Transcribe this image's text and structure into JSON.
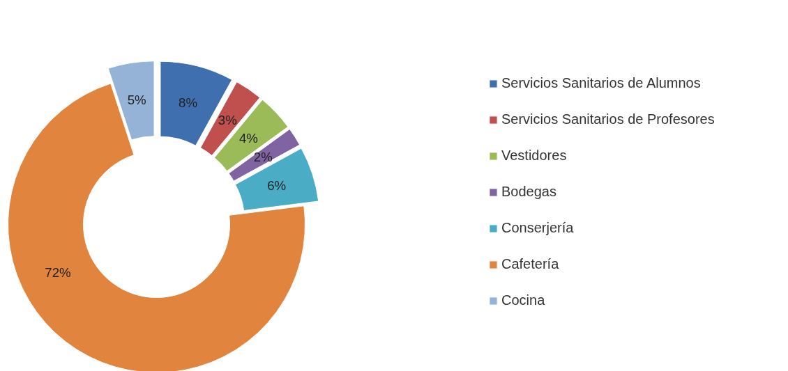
{
  "chart_data": {
    "type": "donut",
    "categories": [
      "Servicios Sanitarios de Alumnos",
      "Servicios Sanitarios de Profesores",
      "Vestidores",
      "Bodegas",
      "Conserjería",
      "Cafetería",
      "Cocina"
    ],
    "values": [
      8,
      3,
      4,
      2,
      6,
      72,
      5
    ],
    "colors": [
      "#3f6fae",
      "#c0504d",
      "#9bbb59",
      "#8064a2",
      "#4bacc6",
      "#e0843e",
      "#95b3d7"
    ],
    "value_labels": [
      "8%",
      "3%",
      "4%",
      "2%",
      "6%",
      "72%",
      "5%"
    ],
    "legend": "right"
  }
}
